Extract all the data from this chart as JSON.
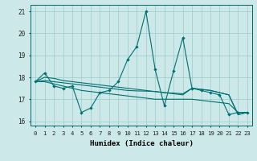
{
  "xlabel": "Humidex (Indice chaleur)",
  "background_color": "#cce8e8",
  "grid_color": "#99cccc",
  "line_color": "#007070",
  "xlim": [
    -0.5,
    23.5
  ],
  "ylim": [
    15.8,
    21.3
  ],
  "yticks": [
    16,
    17,
    18,
    19,
    20,
    21
  ],
  "xticks": [
    0,
    1,
    2,
    3,
    4,
    5,
    6,
    7,
    8,
    9,
    10,
    11,
    12,
    13,
    14,
    15,
    16,
    17,
    18,
    19,
    20,
    21,
    22,
    23
  ],
  "xtick_labels": [
    "0",
    "1",
    "2",
    "3",
    "4",
    "5",
    "6",
    "7",
    "8",
    "9",
    "10",
    "11",
    "12",
    "13",
    "14",
    "15",
    "16",
    "17",
    "18",
    "19",
    "20",
    "21",
    "22",
    "23"
  ],
  "series1_x": [
    0,
    1,
    2,
    3,
    4,
    5,
    6,
    7,
    8,
    9,
    10,
    11,
    12,
    13,
    14,
    15,
    16,
    17,
    18,
    19,
    20,
    21,
    22,
    23
  ],
  "series1_y": [
    17.8,
    18.2,
    17.6,
    17.5,
    17.6,
    16.4,
    16.6,
    17.3,
    17.4,
    17.8,
    18.8,
    19.4,
    21.0,
    18.35,
    16.7,
    18.3,
    19.8,
    17.5,
    17.4,
    17.3,
    17.2,
    16.3,
    16.4,
    16.4
  ],
  "series2_y": [
    17.8,
    18.0,
    17.95,
    17.85,
    17.8,
    17.75,
    17.7,
    17.65,
    17.6,
    17.55,
    17.5,
    17.45,
    17.4,
    17.35,
    17.3,
    17.25,
    17.2,
    17.5,
    17.45,
    17.4,
    17.3,
    17.2,
    16.3,
    16.4
  ],
  "series3_y": [
    17.8,
    17.8,
    17.7,
    17.6,
    17.5,
    17.4,
    17.35,
    17.3,
    17.25,
    17.2,
    17.15,
    17.1,
    17.05,
    17.0,
    17.0,
    17.0,
    17.0,
    17.0,
    16.95,
    16.9,
    16.85,
    16.8,
    16.4,
    16.4
  ],
  "series4_y": [
    17.8,
    17.85,
    17.8,
    17.75,
    17.7,
    17.65,
    17.6,
    17.55,
    17.5,
    17.45,
    17.4,
    17.38,
    17.37,
    17.35,
    17.3,
    17.28,
    17.25,
    17.5,
    17.45,
    17.4,
    17.3,
    17.2,
    16.3,
    16.4
  ]
}
